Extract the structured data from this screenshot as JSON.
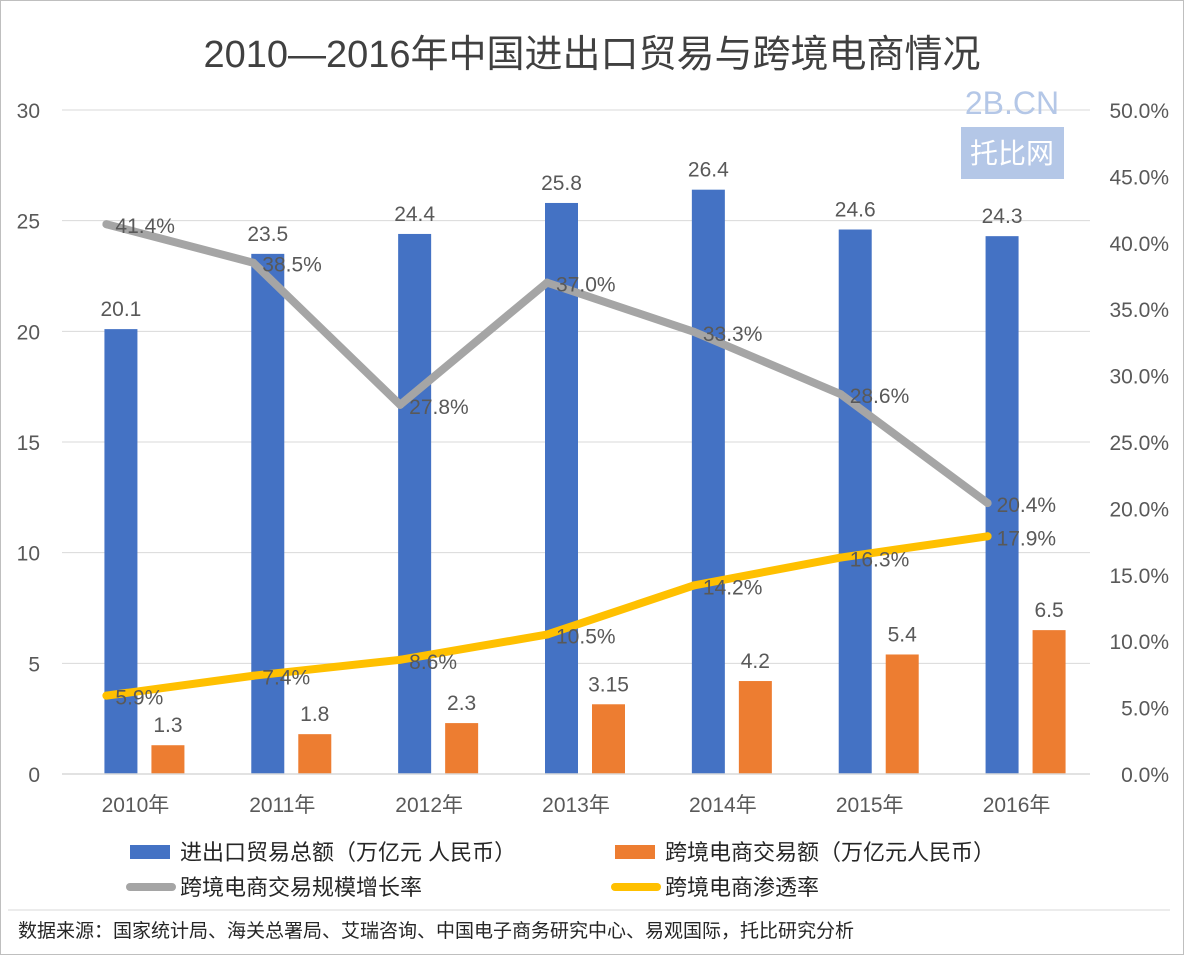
{
  "chart_data": {
    "type": "bar",
    "title": "2010—2016年中国进出口贸易与跨境电商情况",
    "categories": [
      "2010年",
      "2011年",
      "2012年",
      "2013年",
      "2014年",
      "2015年",
      "2016年"
    ],
    "series": [
      {
        "name": "进出口贸易总额（万亿元 人民币）",
        "kind": "bar",
        "axis": "left",
        "color": "#4472C4",
        "values": [
          20.1,
          23.5,
          24.4,
          25.8,
          26.4,
          24.6,
          24.3
        ],
        "labels": [
          "20.1",
          "23.5",
          "24.4",
          "25.8",
          "26.4",
          "24.6",
          "24.3"
        ]
      },
      {
        "name": "跨境电商交易额（万亿元人民币）",
        "kind": "bar",
        "axis": "left",
        "color": "#ED7D31",
        "values": [
          1.3,
          1.8,
          2.3,
          3.15,
          4.2,
          5.4,
          6.5
        ],
        "labels": [
          "1.3",
          "1.8",
          "2.3",
          "3.15",
          "4.2",
          "5.4",
          "6.5"
        ]
      },
      {
        "name": "跨境电商交易规模增长率",
        "kind": "line",
        "axis": "right",
        "color": "#A5A5A5",
        "values": [
          41.4,
          38.5,
          27.8,
          37.0,
          33.3,
          28.6,
          20.4
        ],
        "labels": [
          "41.4%",
          "38.5%",
          "27.8%",
          "37.0%",
          "33.3%",
          "28.6%",
          "20.4%"
        ]
      },
      {
        "name": "跨境电商渗透率",
        "kind": "line",
        "axis": "right",
        "color": "#FFC000",
        "values": [
          5.9,
          7.4,
          8.6,
          10.5,
          14.2,
          16.3,
          17.9
        ],
        "labels": [
          "5.9%",
          "7.4%",
          "8.6%",
          "10.5%",
          "14.2%",
          "16.3%",
          "17.9%"
        ]
      }
    ],
    "y_left": {
      "range": [
        0,
        30
      ],
      "ticks": [
        "0",
        "5",
        "10",
        "15",
        "20",
        "25",
        "30"
      ]
    },
    "y_right": {
      "range": [
        0,
        50
      ],
      "ticks": [
        "0.0%",
        "5.0%",
        "10.0%",
        "15.0%",
        "20.0%",
        "25.0%",
        "30.0%",
        "35.0%",
        "40.0%",
        "45.0%",
        "50.0%"
      ]
    },
    "grid": true,
    "legend_position": "bottom",
    "source_note": "数据来源：国家统计局、海关总署局、艾瑞咨询、中国电子商务研究中心、易观国际，托比研究分析"
  },
  "watermark": {
    "top": "2B.CN",
    "bottom": "托比网"
  },
  "colors": {
    "grid": "#D9D9D9",
    "text": "#595959",
    "title": "#404040",
    "border": "#BFBFBF"
  }
}
